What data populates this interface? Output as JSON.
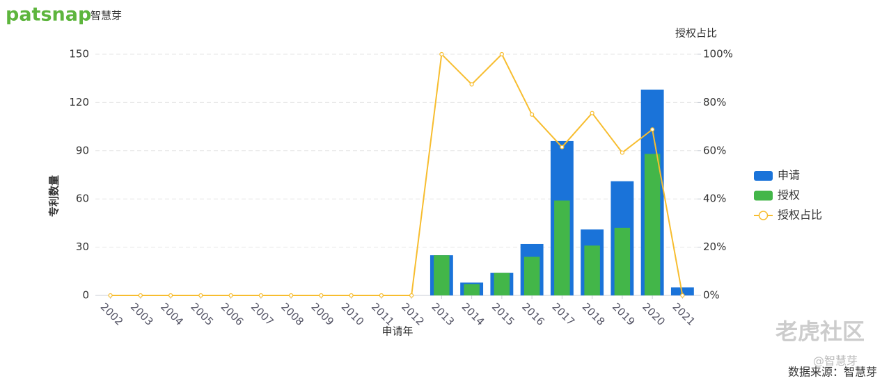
{
  "chart_data": {
    "type": "bar_line",
    "logo": "patsnap",
    "logo_sub": "智慧芽",
    "xlabel": "申请年",
    "ylabel": "专利数量",
    "y2label": "授权占比",
    "categories": [
      "2002",
      "2003",
      "2004",
      "2005",
      "2006",
      "2007",
      "2008",
      "2009",
      "2010",
      "2011",
      "2012",
      "2013",
      "2014",
      "2015",
      "2016",
      "2017",
      "2018",
      "2019",
      "2020",
      "2021"
    ],
    "series": [
      {
        "name": "申请",
        "color": "#1a73d9",
        "type": "bar",
        "values": [
          0,
          0,
          0,
          0,
          0,
          0,
          0,
          0,
          0,
          0,
          0,
          25,
          8,
          14,
          32,
          96,
          41,
          71,
          128,
          5
        ]
      },
      {
        "name": "授权",
        "color": "#43b649",
        "type": "bar",
        "values": [
          0,
          0,
          0,
          0,
          0,
          0,
          0,
          0,
          0,
          0,
          0,
          25,
          7,
          14,
          24,
          59,
          31,
          42,
          88,
          0
        ]
      },
      {
        "name": "授权占比",
        "color": "#f7bd2f",
        "type": "line",
        "axis": "y2",
        "values": [
          0,
          0,
          0,
          0,
          0,
          0,
          0,
          0,
          0,
          0,
          0,
          100,
          87.5,
          100,
          75,
          61.5,
          75.6,
          59.2,
          68.8,
          0
        ]
      }
    ],
    "ylim": [
      0,
      150
    ],
    "yticks": [
      0,
      30,
      60,
      90,
      120,
      150
    ],
    "y2lim": [
      0,
      100
    ],
    "y2ticks": [
      {
        "value": 0,
        "label": "0%"
      },
      {
        "value": 20,
        "label": "20%"
      },
      {
        "value": 40,
        "label": "40%"
      },
      {
        "value": 60,
        "label": "60%"
      },
      {
        "value": 80,
        "label": "80%"
      },
      {
        "value": 100,
        "label": "100%"
      }
    ],
    "grid": true,
    "watermark": "老虎社区",
    "watermark_sub": "@智慧芽",
    "source": "数据来源：智慧芽"
  }
}
